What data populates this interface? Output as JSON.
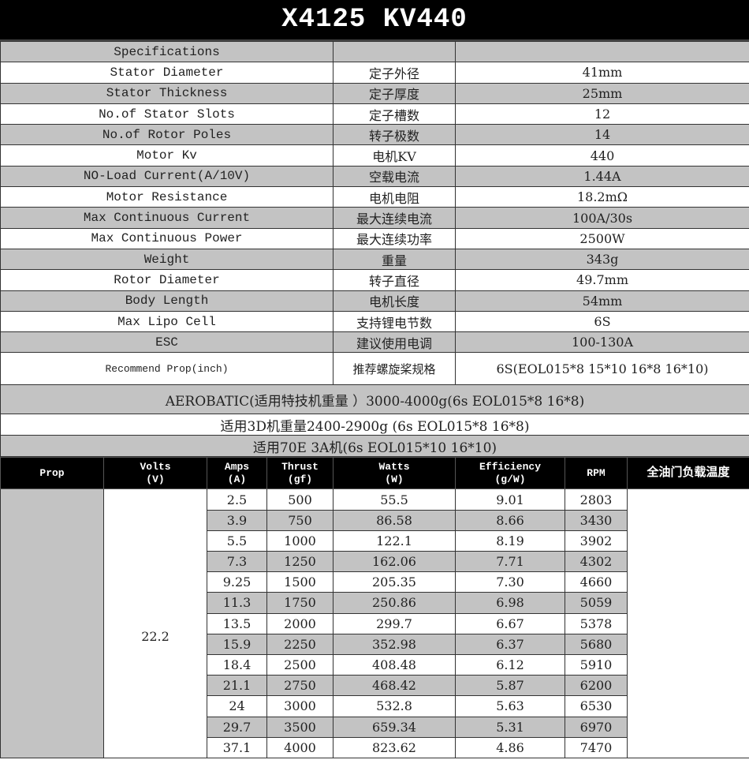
{
  "title": "X4125  KV440",
  "specs_header": "Specifications",
  "specs": [
    {
      "en": "Stator Diameter",
      "cn": "定子外径",
      "value": "41mm"
    },
    {
      "en": "Stator Thickness",
      "cn": "定子厚度",
      "value": "25mm"
    },
    {
      "en": "No.of Stator Slots",
      "cn": "定子槽数",
      "value": "12"
    },
    {
      "en": "No.of Rotor Poles",
      "cn": "转子极数",
      "value": "14"
    },
    {
      "en": "Motor Kv",
      "cn": "电机KV",
      "value": "440"
    },
    {
      "en": "NO-Load Current(A/10V)",
      "cn": "空载电流",
      "value": "1.44A"
    },
    {
      "en": "Motor Resistance",
      "cn": "电机电阻",
      "value": "18.2mΩ"
    },
    {
      "en": "Max Continuous Current",
      "cn": "最大连续电流",
      "value": "100A/30s"
    },
    {
      "en": "Max Continuous Power",
      "cn": "最大连续功率",
      "value": "2500W"
    },
    {
      "en": "Weight",
      "cn": "重量",
      "value": "343g"
    },
    {
      "en": "Rotor Diameter",
      "cn": "转子直径",
      "value": "49.7mm"
    },
    {
      "en": "Body Length",
      "cn": "电机长度",
      "value": "54mm"
    },
    {
      "en": "Max Lipo Cell",
      "cn": "支持锂电节数",
      "value": "6S"
    },
    {
      "en": "ESC",
      "cn": "建议使用电调",
      "value": "100-130A"
    }
  ],
  "recommend": {
    "en": "Recommend Prop(inch)",
    "cn": "推荐螺旋桨规格",
    "value": "6S(EOL015*8  15*10  16*8  16*10)"
  },
  "notes": [
    "AEROBATIC(适用特技机重量 ）3000-4000g(6s  EOL015*8  16*8)",
    "适用3D机重量2400-2900g (6s  EOL015*8  16*8)",
    "适用70E  3A机(6s  EOL015*10  16*10)"
  ],
  "table": {
    "headers": [
      "Prop",
      "Volts\n(V)",
      "Amps\n(A)",
      "Thrust\n(gf)",
      "Watts\n(W)",
      "Efficiency\n(g/W)",
      "RPM",
      "全油门负载温度"
    ],
    "volts": "22.2",
    "rows": [
      [
        "2.5",
        "500",
        "55.5",
        "9.01",
        "2803"
      ],
      [
        "3.9",
        "750",
        "86.58",
        "8.66",
        "3430"
      ],
      [
        "5.5",
        "1000",
        "122.1",
        "8.19",
        "3902"
      ],
      [
        "7.3",
        "1250",
        "162.06",
        "7.71",
        "4302"
      ],
      [
        "9.25",
        "1500",
        "205.35",
        "7.30",
        "4660"
      ],
      [
        "11.3",
        "1750",
        "250.86",
        "6.98",
        "5059"
      ],
      [
        "13.5",
        "2000",
        "299.7",
        "6.67",
        "5378"
      ],
      [
        "15.9",
        "2250",
        "352.98",
        "6.37",
        "5680"
      ],
      [
        "18.4",
        "2500",
        "408.48",
        "6.12",
        "5910"
      ],
      [
        "21.1",
        "2750",
        "468.42",
        "5.87",
        "6200"
      ],
      [
        "24",
        "3000",
        "532.8",
        "5.63",
        "6530"
      ],
      [
        "29.7",
        "3500",
        "659.34",
        "5.31",
        "6970"
      ],
      [
        "37.1",
        "4000",
        "823.62",
        "4.86",
        "7470"
      ]
    ]
  }
}
